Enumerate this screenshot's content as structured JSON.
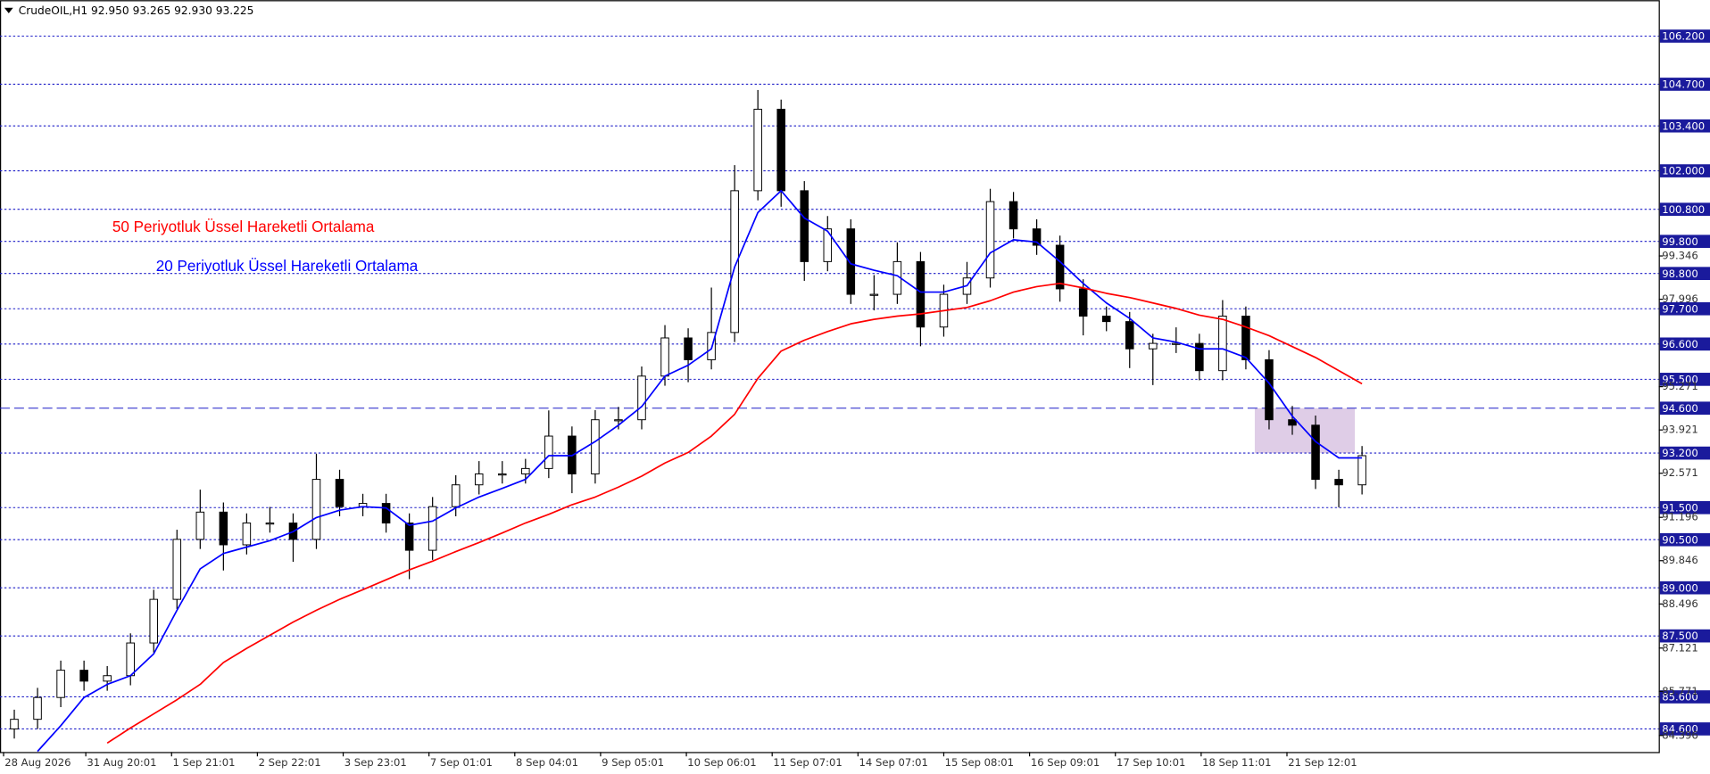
{
  "chart_data": {
    "type": "candlestick",
    "header": "CrudeOIL,H1  92.950 93.265 92.930 93.225",
    "annotations": [
      {
        "text": "50 Periyotluk Üssel Hareketli Ortalama",
        "color": "#ff0000"
      },
      {
        "text": "20 Periyotluk Üssel Hareketli Ortalama",
        "color": "#0000ff"
      }
    ],
    "xlim": [
      0,
      464
    ],
    "ylim": [
      83.88,
      107.32
    ],
    "xticks": [
      {
        "value": 1,
        "label": "28 Aug 2026"
      },
      {
        "value": 24,
        "label": "31 Aug 20:01"
      },
      {
        "value": 48,
        "label": "1 Sep 21:01"
      },
      {
        "value": 72,
        "label": "2 Sep 22:01"
      },
      {
        "value": 96,
        "label": "3 Sep 23:01"
      },
      {
        "value": 120,
        "label": "7 Sep 01:01"
      },
      {
        "value": 144,
        "label": "8 Sep 04:01"
      },
      {
        "value": 168,
        "label": "9 Sep 05:01"
      },
      {
        "value": 192,
        "label": "10 Sep 06:01"
      },
      {
        "value": 216,
        "label": "11 Sep 07:01"
      },
      {
        "value": 240,
        "label": "14 Sep 07:01"
      },
      {
        "value": 264,
        "label": "15 Sep 08:01"
      },
      {
        "value": 288,
        "label": "16 Sep 09:01"
      },
      {
        "value": 312,
        "label": "17 Sep 10:01"
      },
      {
        "value": 336,
        "label": "18 Sep 11:01"
      },
      {
        "value": 360,
        "label": "21 Sep 12:01"
      }
    ],
    "yticks": [
      99.346,
      97.996,
      95.271,
      93.921,
      92.571,
      91.196,
      89.846,
      88.496,
      87.121,
      85.771,
      84.396
    ],
    "levels": [
      {
        "value": 106.2,
        "label": "106.200"
      },
      {
        "value": 104.7,
        "label": "104.700"
      },
      {
        "value": 103.4,
        "label": "103.400"
      },
      {
        "value": 102,
        "label": "102.000"
      },
      {
        "value": 100.8,
        "label": "100.800"
      },
      {
        "value": 99.8,
        "label": "99.800"
      },
      {
        "value": 98.8,
        "label": "98.800"
      },
      {
        "value": 97.7,
        "label": "97.700"
      },
      {
        "value": 96.6,
        "label": "96.600"
      },
      {
        "value": 95.5,
        "label": "95.500"
      },
      {
        "value": 94.6,
        "label": "94.600"
      },
      {
        "value": 93.2,
        "label": "93.200"
      },
      {
        "value": 91.5,
        "label": "91.500"
      },
      {
        "value": 90.5,
        "label": "90.500"
      },
      {
        "value": 89,
        "label": "89.000"
      },
      {
        "value": 87.5,
        "label": "87.500"
      },
      {
        "value": 85.6,
        "label": "85.600"
      },
      {
        "value": 84.6,
        "label": "84.600"
      }
    ],
    "dashed_level": 94.6,
    "zone": {
      "x": [
        351,
        379
      ],
      "y": [
        93.2,
        94.6
      ],
      "color": "#d9c4e3"
    },
    "x": [
      4,
      10.5,
      17,
      23.5,
      30,
      36.5,
      43,
      49.5,
      56,
      62.5,
      69,
      75.5,
      82,
      88.5,
      95,
      101.5,
      108,
      114.5,
      121,
      127.5,
      134,
      140.5,
      147,
      153.5,
      160,
      166.5,
      173,
      179.5,
      186,
      192.5,
      199,
      205.5,
      212,
      218.5,
      225,
      231.5,
      238,
      244.5,
      251,
      257.5,
      264,
      270.5,
      277,
      283.5,
      290,
      296.5,
      303,
      309.5,
      316,
      322.5,
      329,
      335.5,
      342,
      348.5,
      355,
      361.5,
      368,
      374.5,
      381
    ],
    "open": [
      84.6,
      84.9,
      85.58,
      86.43,
      86.09,
      86.26,
      87.28,
      88.64,
      90.51,
      91.36,
      90.34,
      91.02,
      91.02,
      90.51,
      92.38,
      91.53,
      91.63,
      91.02,
      90.17,
      91.53,
      92.21,
      92.55,
      92.55,
      92.72,
      93.73,
      92.55,
      94.24,
      94.24,
      95.6,
      96.79,
      96.11,
      96.96,
      101.38,
      103.92,
      101.38,
      99.17,
      100.19,
      98.15,
      98.15,
      99.17,
      97.13,
      98.15,
      98.66,
      101.04,
      100.19,
      99.68,
      98.32,
      97.47,
      97.3,
      96.45,
      96.62,
      96.62,
      95.77,
      97.47,
      96.11,
      94.24,
      94.07,
      92.38,
      92.21
    ],
    "high": [
      85.2,
      85.88,
      86.73,
      86.73,
      86.56,
      87.58,
      88.94,
      90.81,
      92.06,
      91.66,
      91.32,
      91.52,
      91.32,
      93.18,
      92.68,
      91.93,
      91.93,
      91.32,
      91.83,
      92.51,
      92.95,
      92.95,
      93.02,
      94.53,
      94.03,
      94.54,
      94.64,
      95.9,
      97.19,
      97.09,
      98.36,
      102.18,
      104.52,
      104.22,
      101.68,
      100.59,
      100.49,
      98.75,
      99.77,
      99.47,
      98.45,
      99.16,
      101.44,
      101.34,
      100.49,
      99.98,
      98.62,
      97.77,
      97.6,
      96.92,
      97.12,
      96.92,
      97.97,
      97.77,
      96.41,
      94.67,
      94.37,
      92.68,
      93.42
    ],
    "low": [
      84.3,
      84.6,
      85.28,
      85.79,
      85.79,
      85.96,
      86.98,
      88.34,
      90.21,
      89.54,
      90.04,
      90.72,
      89.81,
      90.21,
      91.23,
      91.23,
      90.72,
      89.27,
      89.87,
      91.23,
      91.91,
      92.25,
      92.25,
      92.42,
      91.95,
      92.25,
      93.94,
      93.94,
      95.3,
      95.41,
      95.81,
      96.66,
      101.08,
      100.88,
      98.57,
      98.87,
      97.85,
      97.65,
      97.85,
      96.53,
      96.83,
      97.85,
      98.36,
      99.89,
      99.38,
      97.92,
      96.87,
      97.0,
      95.85,
      95.32,
      96.32,
      95.47,
      95.47,
      95.81,
      93.94,
      93.77,
      92.08,
      91.51,
      91.91
    ],
    "close": [
      84.9,
      85.58,
      86.43,
      86.09,
      86.26,
      87.28,
      88.64,
      90.51,
      91.36,
      90.34,
      91.02,
      91.02,
      90.51,
      92.38,
      91.53,
      91.63,
      91.02,
      90.17,
      91.53,
      92.21,
      92.55,
      92.55,
      92.72,
      93.73,
      92.55,
      94.24,
      94.24,
      95.6,
      96.79,
      96.11,
      96.96,
      101.38,
      103.92,
      101.38,
      99.17,
      100.19,
      98.15,
      98.15,
      99.17,
      97.13,
      98.15,
      98.66,
      101.04,
      100.19,
      99.68,
      98.32,
      97.47,
      97.3,
      96.45,
      96.62,
      96.62,
      95.77,
      97.47,
      96.11,
      94.24,
      94.07,
      92.38,
      92.21,
      93.12
    ],
    "lines": [
      {
        "color": "#0000ff",
        "values": [
          null,
          83.9,
          84.7,
          85.58,
          85.99,
          86.26,
          86.94,
          88.3,
          89.59,
          90.07,
          90.27,
          90.47,
          90.75,
          91.19,
          91.42,
          91.53,
          91.49,
          90.95,
          91.08,
          91.49,
          91.83,
          92.1,
          92.38,
          93.12,
          93.12,
          93.56,
          94.07,
          94.65,
          95.6,
          95.94,
          96.45,
          99.0,
          100.7,
          101.38,
          100.53,
          100.12,
          99.1,
          98.9,
          98.73,
          98.22,
          98.22,
          98.42,
          99.44,
          99.85,
          99.78,
          99.17,
          98.49,
          97.88,
          97.4,
          96.79,
          96.66,
          96.45,
          96.45,
          96.18,
          95.38,
          94.35,
          93.56,
          93.05,
          93.05
        ]
      },
      {
        "color": "#ff0000",
        "values": [
          null,
          null,
          null,
          null,
          84.16,
          84.63,
          85.07,
          85.51,
          85.99,
          86.67,
          87.11,
          87.52,
          87.93,
          88.3,
          88.64,
          88.94,
          89.25,
          89.56,
          89.83,
          90.13,
          90.41,
          90.71,
          91.02,
          91.29,
          91.59,
          91.83,
          92.14,
          92.48,
          92.89,
          93.22,
          93.73,
          94.41,
          95.53,
          96.38,
          96.72,
          96.99,
          97.23,
          97.37,
          97.47,
          97.54,
          97.64,
          97.74,
          97.95,
          98.22,
          98.39,
          98.49,
          98.35,
          98.18,
          98.05,
          97.88,
          97.71,
          97.5,
          97.37,
          97.13,
          96.86,
          96.52,
          96.18,
          95.77,
          95.36
        ]
      }
    ]
  }
}
